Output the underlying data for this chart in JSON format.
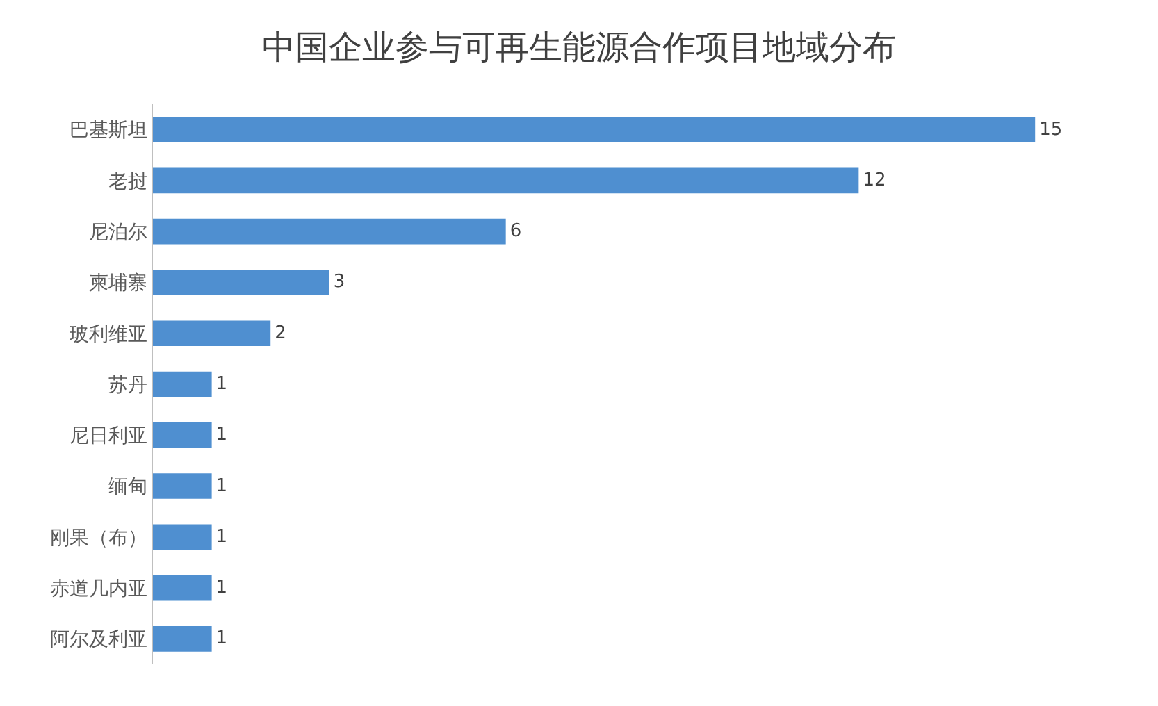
{
  "chart_data": {
    "type": "bar",
    "orientation": "horizontal",
    "title": "中国企业参与可再生能源合作项目地域分布",
    "categories": [
      "巴基斯坦",
      "老挝",
      "尼泊尔",
      "柬埔寨",
      "玻利维亚",
      "苏丹",
      "尼日利亚",
      "缅甸",
      "刚果（布）",
      "赤道几内亚",
      "阿尔及利亚"
    ],
    "values": [
      15,
      12,
      6,
      3,
      2,
      1,
      1,
      1,
      1,
      1,
      1
    ],
    "color": "#4f8fd0",
    "data_labels": true
  }
}
